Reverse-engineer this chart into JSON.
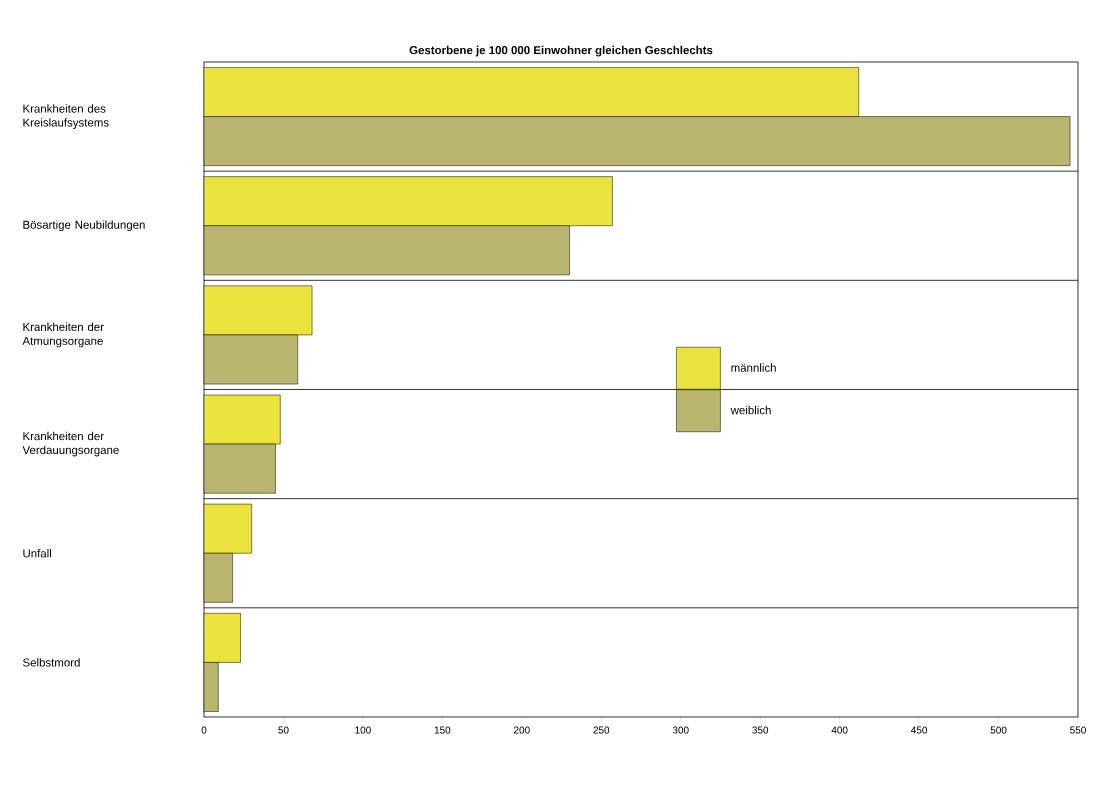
{
  "chart_data": {
    "type": "bar",
    "orientation": "horizontal",
    "title": "Gestorbene je 100 000 Einwohner gleichen Geschlechts",
    "categories": [
      "Krankheiten des Kreislaufsystems",
      "Bösartige Neubildungen",
      "Krankheiten der Atmungsorgane",
      "Krankheiten der Verdauungsorgane",
      "Unfall",
      "Selbstmord"
    ],
    "series": [
      {
        "name": "männlich",
        "color": "#ebe33d",
        "values": [
          412,
          257,
          68,
          48,
          30,
          23
        ]
      },
      {
        "name": "weiblich",
        "color": "#bab56f",
        "values": [
          545,
          230,
          59,
          45,
          18,
          9
        ]
      }
    ],
    "xlim": [
      0,
      550
    ],
    "xticks": [
      0,
      50,
      100,
      150,
      200,
      250,
      300,
      350,
      400,
      450,
      500,
      550
    ],
    "grid": "y",
    "legend": "right"
  }
}
